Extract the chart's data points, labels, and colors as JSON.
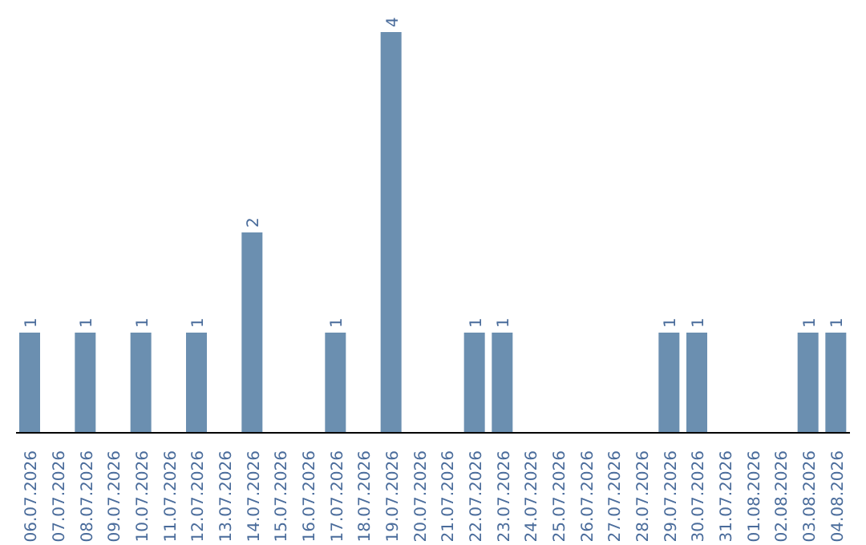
{
  "chart_data": {
    "type": "bar",
    "categories": [
      "06.07.2026",
      "07.07.2026",
      "08.07.2026",
      "09.07.2026",
      "10.07.2026",
      "11.07.2026",
      "12.07.2026",
      "13.07.2026",
      "14.07.2026",
      "15.07.2026",
      "16.07.2026",
      "17.07.2026",
      "18.07.2026",
      "19.07.2026",
      "20.07.2026",
      "21.07.2026",
      "22.07.2026",
      "23.07.2026",
      "24.07.2026",
      "25.07.2026",
      "26.07.2026",
      "27.07.2026",
      "28.07.2026",
      "29.07.2026",
      "30.07.2026",
      "31.07.2026",
      "01.08.2026",
      "02.08.2026",
      "03.08.2026",
      "04.08.2026"
    ],
    "values": [
      1,
      0,
      1,
      0,
      1,
      0,
      1,
      0,
      2,
      0,
      0,
      1,
      0,
      4,
      0,
      0,
      1,
      1,
      0,
      0,
      0,
      0,
      0,
      1,
      1,
      0,
      0,
      0,
      1,
      1
    ],
    "value_labels": [
      "1",
      null,
      "1",
      null,
      "1",
      null,
      "1",
      null,
      "2",
      null,
      null,
      "1",
      null,
      "4",
      null,
      null,
      "1",
      "1",
      null,
      null,
      null,
      null,
      null,
      "1",
      "1",
      null,
      null,
      null,
      "1",
      "1"
    ],
    "color": "#6b8fb0",
    "grid": false,
    "legend": false
  }
}
